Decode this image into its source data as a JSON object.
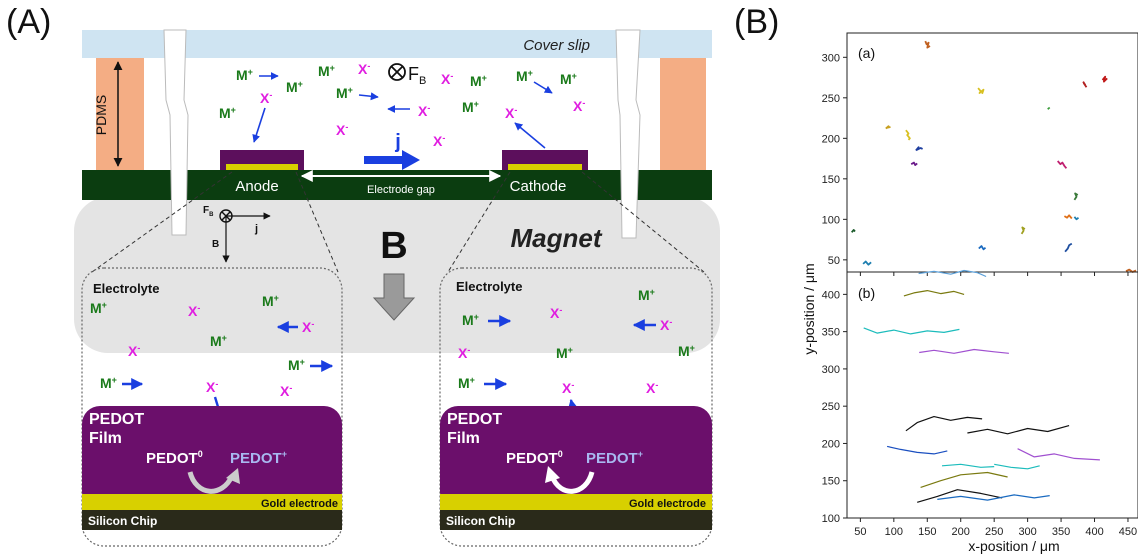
{
  "panel_a": {
    "letter": "(A)",
    "cover_slip": "Cover slip",
    "pdms": "PDMS",
    "anode": "Anode",
    "cathode": "Cathode",
    "electrode_gap": "Electrode gap",
    "magnet": "Magnet",
    "b_field": "B",
    "current_j": "j",
    "lorentz_force": "F",
    "lorentz_force_sub": "B",
    "axis_fb": "F",
    "axis_fb_sub": "B",
    "axis_j": "j",
    "axis_b": "B",
    "cation": "M",
    "anion": "X",
    "plus": "+",
    "minus": "-",
    "inset_left": {
      "electrolyte": "Electrolyte",
      "film_line1": "PEDOT",
      "film_line2": "Film",
      "pedot0": "PEDOT",
      "pedot0_sup": "0",
      "pedotp": "PEDOT",
      "pedotp_sup": "+",
      "gold": "Gold electrode",
      "silicon": "Silicon Chip"
    },
    "inset_right": {
      "electrolyte": "Electrolyte",
      "film_line1": "PEDOT",
      "film_line2": "Film",
      "pedot0": "PEDOT",
      "pedot0_sup": "0",
      "pedotp": "PEDOT",
      "pedotp_sup": "+",
      "gold": "Gold electrode",
      "silicon": "Silicon Chip"
    }
  },
  "panel_b": {
    "letter": "(B)",
    "sub_a": "(a)",
    "sub_b": "(b)",
    "ylabel": "y-position / μm",
    "xlabel": "x-position / μm",
    "x_ticks": [
      "50",
      "100",
      "150",
      "200",
      "250",
      "300",
      "350",
      "400",
      "450"
    ],
    "y_ticks_a": [
      "50",
      "100",
      "150",
      "200",
      "250",
      "300"
    ],
    "y_ticks_b": [
      "100",
      "150",
      "200",
      "250",
      "300",
      "350",
      "400"
    ]
  },
  "colors": {
    "cover_slip": "#cfe4f2",
    "pdms": "#f4ad84",
    "substrate": "#0b3d10",
    "electrode": "#5c0f5c",
    "gold": "#d8d000",
    "magnet": "#e4e4e4",
    "cation": "#1a7a1a",
    "anion": "#e01ee0",
    "arrow": "#1a3fe0",
    "pedot_film": "#6b0f6b",
    "silicon": "#2a2a1a"
  },
  "chart_data": [
    {
      "type": "scatter",
      "title": "(a)",
      "xlabel": "x-position / μm",
      "ylabel": "y-position / μm",
      "xlim": [
        30,
        465
      ],
      "ylim": [
        35,
        330
      ],
      "x_ticks": [
        50,
        100,
        150,
        200,
        250,
        300,
        350,
        400,
        450
      ],
      "y_ticks": [
        50,
        100,
        150,
        200,
        250,
        300
      ],
      "series": [
        {
          "color": "#c06020",
          "x": [
            147,
            149,
            152,
            150,
            154
          ],
          "y": [
            320,
            316,
            318,
            312,
            314
          ]
        },
        {
          "color": "#d8c020",
          "x": [
            226,
            230,
            228,
            234,
            232
          ],
          "y": [
            262,
            258,
            256,
            260,
            255
          ]
        },
        {
          "color": "#b22222",
          "x": [
            383,
            386,
            384,
            388
          ],
          "y": [
            270,
            266,
            268,
            263
          ]
        },
        {
          "color": "#c01818",
          "x": [
            412,
            416,
            414,
            419
          ],
          "y": [
            272,
            276,
            270,
            274
          ]
        },
        {
          "color": "#3a9c3a",
          "x": [
            330,
            333
          ],
          "y": [
            236,
            238
          ]
        },
        {
          "color": "#c8a020",
          "x": [
            88,
            92,
            90,
            95
          ],
          "y": [
            212,
            215,
            213,
            214
          ]
        },
        {
          "color": "#d8c020",
          "x": [
            118,
            122,
            120,
            124,
            122
          ],
          "y": [
            210,
            206,
            204,
            200,
            198
          ]
        },
        {
          "color": "#1f3fa0",
          "x": [
            133,
            137,
            135,
            140,
            143
          ],
          "y": [
            185,
            189,
            186,
            188,
            187
          ]
        },
        {
          "color": "#6a1a8a",
          "x": [
            126,
            130,
            132,
            135
          ],
          "y": [
            168,
            170,
            167,
            169
          ]
        },
        {
          "color": "#c02070",
          "x": [
            345,
            349,
            352,
            355,
            358
          ],
          "y": [
            172,
            168,
            170,
            166,
            163
          ]
        },
        {
          "color": "#3a7a3a",
          "x": [
            370,
            373,
            371,
            375
          ],
          "y": [
            124,
            128,
            132,
            130
          ]
        },
        {
          "color": "#e07018",
          "x": [
            355,
            359,
            362,
            366
          ],
          "y": [
            104,
            102,
            105,
            101
          ]
        },
        {
          "color": "#1f7fb0",
          "x": [
            370,
            373,
            376
          ],
          "y": [
            103,
            100,
            102
          ]
        },
        {
          "color": "#1a6ac0",
          "x": [
            227,
            231,
            234,
            237
          ],
          "y": [
            64,
            67,
            63,
            65
          ]
        },
        {
          "color": "#a0a020",
          "x": [
            291,
            294,
            292,
            296
          ],
          "y": [
            82,
            86,
            90,
            88
          ]
        },
        {
          "color": "#1f4fa0",
          "x": [
            356,
            360,
            362,
            366
          ],
          "y": [
            60,
            64,
            68,
            70
          ]
        },
        {
          "color": "#1f7fb0",
          "x": [
            54,
            58,
            62,
            66
          ],
          "y": [
            45,
            48,
            44,
            47
          ]
        },
        {
          "color": "#1a5a2a",
          "x": [
            37,
            40,
            42
          ],
          "y": [
            84,
            87,
            85
          ]
        },
        {
          "color": "#c06020",
          "x": [
            447,
            452,
            457,
            462
          ],
          "y": [
            36,
            38,
            35,
            37
          ]
        }
      ]
    },
    {
      "type": "line",
      "title": "(b)",
      "xlabel": "x-position / μm",
      "ylabel": "y-position / μm",
      "xlim": [
        30,
        465
      ],
      "ylim": [
        100,
        430
      ],
      "x_ticks": [
        50,
        100,
        150,
        200,
        250,
        300,
        350,
        400,
        450
      ],
      "y_ticks": [
        100,
        150,
        200,
        250,
        300,
        350,
        400
      ],
      "series": [
        {
          "color": "#5a9fd8",
          "x": [
            137,
            160,
            185,
            205,
            225,
            238
          ],
          "y": [
            428,
            431,
            427,
            432,
            429,
            424
          ]
        },
        {
          "color": "#7a7a10",
          "x": [
            115,
            130,
            150,
            170,
            190,
            205
          ],
          "y": [
            398,
            402,
            405,
            401,
            404,
            400
          ]
        },
        {
          "color": "#1cbcbc",
          "x": [
            55,
            75,
            100,
            125,
            150,
            175,
            198
          ],
          "y": [
            355,
            348,
            352,
            347,
            351,
            349,
            353
          ]
        },
        {
          "color": "#a050d0",
          "x": [
            138,
            160,
            190,
            220,
            250,
            272
          ],
          "y": [
            322,
            325,
            321,
            326,
            323,
            321
          ]
        },
        {
          "color": "#111111",
          "x": [
            118,
            135,
            160,
            185,
            210,
            232
          ],
          "y": [
            217,
            228,
            236,
            231,
            235,
            233
          ]
        },
        {
          "color": "#111111",
          "x": [
            210,
            240,
            270,
            300,
            330,
            362
          ],
          "y": [
            214,
            219,
            213,
            220,
            216,
            224
          ]
        },
        {
          "color": "#1a4fc0",
          "x": [
            90,
            110,
            135,
            160,
            180
          ],
          "y": [
            196,
            192,
            188,
            186,
            190
          ]
        },
        {
          "color": "#a050d0",
          "x": [
            285,
            310,
            340,
            370,
            408
          ],
          "y": [
            193,
            182,
            186,
            180,
            178
          ]
        },
        {
          "color": "#1cbcbc",
          "x": [
            172,
            200,
            230,
            250
          ],
          "y": [
            170,
            172,
            168,
            169
          ]
        },
        {
          "color": "#1cbcbc",
          "x": [
            250,
            275,
            300,
            318
          ],
          "y": [
            172,
            168,
            166,
            170
          ]
        },
        {
          "color": "#7a7a10",
          "x": [
            140,
            170,
            200,
            240,
            270
          ],
          "y": [
            141,
            150,
            158,
            161,
            155
          ]
        },
        {
          "color": "#111111",
          "x": [
            135,
            165,
            195,
            230,
            262
          ],
          "y": [
            121,
            129,
            138,
            133,
            127
          ]
        },
        {
          "color": "#1a6ac0",
          "x": [
            165,
            200,
            240,
            280,
            310,
            333
          ],
          "y": [
            125,
            129,
            124,
            131,
            127,
            130
          ]
        }
      ]
    }
  ]
}
